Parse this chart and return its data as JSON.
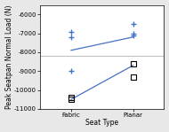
{
  "title": "",
  "xlabel": "Seat Type",
  "ylabel": "Peak Seatpan Normal Load (N)",
  "xlim": [
    -0.5,
    1.5
  ],
  "ylim": [
    -11000,
    -5500
  ],
  "yticks": [
    -11000,
    -10000,
    -9000,
    -8000,
    -7000,
    -6000
  ],
  "xtick_labels": [
    "Fabric",
    "Planar"
  ],
  "background_color": "#e8e8e8",
  "plot_bg_color": "#ffffff",
  "hline_y": -8200,
  "plus_fabric": [
    -6950,
    -7200,
    -9000
  ],
  "plus_planar": [
    -6500,
    -7000,
    -7100
  ],
  "square_fabric": [
    -10400,
    -10500
  ],
  "square_planar": [
    -8600,
    -9300
  ],
  "line1_x": [
    0,
    1
  ],
  "line1_y": [
    -7900,
    -7200
  ],
  "line2_x": [
    0,
    1
  ],
  "line2_y": [
    -10500,
    -8700
  ],
  "plus_color": "#4472c4",
  "square_color": "#000000",
  "line_color": "#4472c4",
  "marker_size": 5,
  "tick_fontsize": 5,
  "label_fontsize": 5.5
}
